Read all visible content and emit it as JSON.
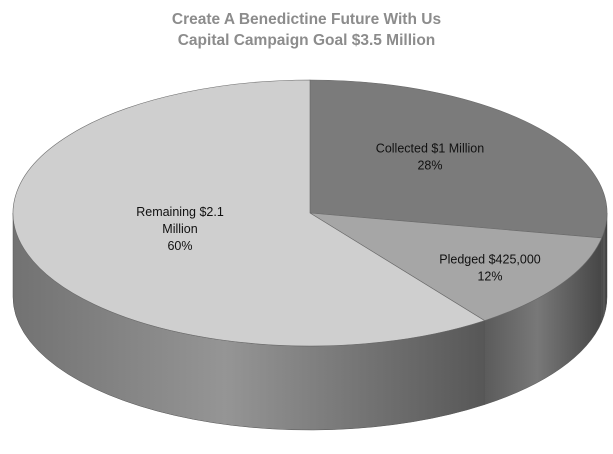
{
  "chart_data": {
    "type": "pie",
    "title": "Create A Benedictine Future With Us",
    "subtitle": "Capital Campaign Goal $3.5 Million",
    "three_d": true,
    "legend": "none",
    "slices": [
      {
        "label_lines": [
          "Collected $1 Million",
          "28%"
        ],
        "value": 28,
        "color": "#7b7b7b"
      },
      {
        "label_lines": [
          "Pledged $425,000",
          "12%"
        ],
        "value": 12,
        "color": "#a6a6a6"
      },
      {
        "label_lines": [
          "Remaining $2.1",
          "Million",
          "60%"
        ],
        "value": 60,
        "color": "#cfcfcf"
      }
    ]
  }
}
